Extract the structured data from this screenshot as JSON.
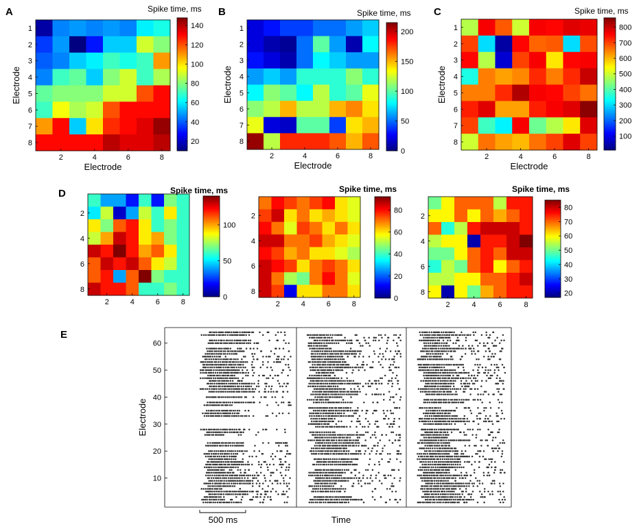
{
  "panel_labels": [
    "A",
    "B",
    "C",
    "D",
    "E"
  ],
  "chart_data": [
    {
      "id": "A",
      "type": "heatmap",
      "colorbar_label": "Spike time, ms",
      "xlabel": "Electrode",
      "ylabel": "Electrode",
      "xticks": [
        "2",
        "4",
        "6",
        "8"
      ],
      "yticks": [
        "1",
        "2",
        "3",
        "4",
        "5",
        "6",
        "7",
        "8"
      ],
      "cbar_range": [
        10,
        148
      ],
      "cbar_ticks": [
        "20",
        "40",
        "60",
        "80",
        "100",
        "120",
        "140"
      ],
      "matrix": [
        [
          15,
          45,
          48,
          45,
          48,
          45,
          60,
          65
        ],
        [
          35,
          48,
          10,
          30,
          55,
          55,
          90,
          80
        ],
        [
          40,
          45,
          55,
          60,
          70,
          65,
          70,
          110
        ],
        [
          45,
          70,
          75,
          55,
          80,
          90,
          70,
          85
        ],
        [
          75,
          80,
          80,
          80,
          90,
          90,
          120,
          130
        ],
        [
          70,
          95,
          85,
          90,
          120,
          130,
          130,
          130
        ],
        [
          110,
          130,
          55,
          100,
          125,
          130,
          135,
          145
        ],
        [
          130,
          130,
          130,
          130,
          140,
          135,
          135,
          140
        ]
      ]
    },
    {
      "id": "B",
      "type": "heatmap",
      "colorbar_label": "Spike time, ms",
      "xlabel": "Electrode",
      "ylabel": "Electrode",
      "xticks": [
        "2",
        "4",
        "6",
        "8"
      ],
      "yticks": [
        "1",
        "2",
        "3",
        "4",
        "5",
        "6",
        "7",
        "8"
      ],
      "cbar_range": [
        0,
        215
      ],
      "cbar_ticks": [
        "0",
        "50",
        "100",
        "150",
        "200"
      ],
      "matrix": [
        [
          20,
          30,
          40,
          40,
          50,
          50,
          60,
          70
        ],
        [
          20,
          10,
          5,
          50,
          100,
          60,
          10,
          80
        ],
        [
          30,
          20,
          10,
          50,
          80,
          70,
          60,
          60
        ],
        [
          60,
          70,
          60,
          90,
          90,
          90,
          110,
          90
        ],
        [
          80,
          110,
          100,
          80,
          120,
          90,
          100,
          130
        ],
        [
          110,
          120,
          150,
          120,
          120,
          150,
          160,
          140
        ],
        [
          130,
          20,
          15,
          100,
          100,
          40,
          140,
          150
        ],
        [
          210,
          120,
          180,
          180,
          180,
          170,
          150,
          170
        ]
      ]
    },
    {
      "id": "C",
      "type": "heatmap",
      "colorbar_label": "Spike time, ms",
      "xlabel": "Electrode",
      "ylabel": "Electrode",
      "xticks": [
        "2",
        "4",
        "6",
        "8"
      ],
      "yticks": [
        "1",
        "2",
        "3",
        "4",
        "5",
        "6",
        "7",
        "8"
      ],
      "cbar_range": [
        10,
        860
      ],
      "cbar_ticks": [
        "100",
        "200",
        "300",
        "400",
        "500",
        "600",
        "700",
        "800"
      ],
      "matrix": [
        [
          480,
          760,
          680,
          500,
          760,
          750,
          780,
          770
        ],
        [
          700,
          300,
          40,
          750,
          670,
          680,
          300,
          690
        ],
        [
          750,
          480,
          80,
          700,
          760,
          560,
          750,
          760
        ],
        [
          350,
          650,
          620,
          640,
          720,
          650,
          720,
          800
        ],
        [
          650,
          650,
          720,
          820,
          760,
          750,
          700,
          660
        ],
        [
          730,
          780,
          620,
          620,
          730,
          760,
          780,
          850
        ],
        [
          700,
          380,
          320,
          760,
          420,
          480,
          560,
          780
        ],
        [
          500,
          660,
          620,
          600,
          660,
          700,
          780,
          700
        ]
      ]
    },
    {
      "id": "D1",
      "type": "heatmap",
      "colorbar_label": "Spike time, ms",
      "xticks": [
        "2",
        "4",
        "6",
        "8"
      ],
      "yticks": [
        "2",
        "4",
        "6",
        "8"
      ],
      "cbar_range": [
        0,
        140
      ],
      "cbar_ticks": [
        "0",
        "50",
        "100"
      ],
      "matrix": [
        [
          60,
          40,
          40,
          20,
          60,
          20,
          70,
          60
        ],
        [
          50,
          80,
          10,
          40,
          80,
          60,
          90,
          60
        ],
        [
          90,
          70,
          110,
          120,
          90,
          60,
          70,
          60
        ],
        [
          80,
          100,
          130,
          120,
          90,
          100,
          70,
          60
        ],
        [
          130,
          120,
          140,
          120,
          100,
          110,
          90,
          60
        ],
        [
          110,
          130,
          120,
          130,
          110,
          90,
          80,
          60
        ],
        [
          110,
          120,
          40,
          110,
          140,
          70,
          60,
          60
        ],
        [
          130,
          120,
          120,
          110,
          60,
          60,
          70,
          60
        ]
      ]
    },
    {
      "id": "D2",
      "type": "heatmap",
      "colorbar_label": "Spike time, ms",
      "xticks": [
        "2",
        "4",
        "6",
        "8"
      ],
      "yticks": [
        "2",
        "4",
        "6",
        "8"
      ],
      "cbar_range": [
        0,
        92
      ],
      "cbar_ticks": [
        "0",
        "20",
        "40",
        "60",
        "80"
      ],
      "matrix": [
        [
          70,
          80,
          75,
          70,
          75,
          80,
          60,
          55
        ],
        [
          75,
          85,
          60,
          70,
          60,
          65,
          60,
          55
        ],
        [
          80,
          70,
          55,
          75,
          70,
          60,
          70,
          60
        ],
        [
          85,
          85,
          70,
          70,
          75,
          65,
          60,
          55
        ],
        [
          80,
          75,
          65,
          70,
          60,
          60,
          55,
          50
        ],
        [
          85,
          80,
          75,
          60,
          70,
          75,
          70,
          60
        ],
        [
          85,
          70,
          50,
          45,
          70,
          80,
          70,
          55
        ],
        [
          85,
          75,
          10,
          60,
          60,
          70,
          70,
          60
        ]
      ]
    },
    {
      "id": "D3",
      "type": "heatmap",
      "colorbar_label": "Spike time, ms",
      "xticks": [
        "2",
        "4",
        "6",
        "8"
      ],
      "yticks": [
        "2",
        "4",
        "6",
        "8"
      ],
      "cbar_range": [
        17,
        85
      ],
      "cbar_ticks": [
        "20",
        "30",
        "40",
        "50",
        "60",
        "70",
        "80"
      ],
      "matrix": [
        [
          50,
          60,
          70,
          70,
          70,
          55,
          75,
          75
        ],
        [
          60,
          60,
          70,
          60,
          70,
          65,
          70,
          75
        ],
        [
          70,
          45,
          55,
          75,
          80,
          80,
          80,
          75
        ],
        [
          55,
          60,
          60,
          20,
          75,
          75,
          80,
          85
        ],
        [
          50,
          50,
          60,
          70,
          75,
          70,
          80,
          80
        ],
        [
          45,
          55,
          50,
          70,
          75,
          60,
          70,
          75
        ],
        [
          55,
          55,
          60,
          60,
          70,
          70,
          75,
          80
        ],
        [
          60,
          20,
          60,
          50,
          65,
          70,
          75,
          75
        ]
      ]
    },
    {
      "id": "E",
      "type": "scatter",
      "subtype": "raster",
      "ylabel": "Electrode",
      "xlabel": "Time",
      "yticks": [
        "10",
        "20",
        "30",
        "40",
        "50",
        "60"
      ],
      "ylim": [
        0,
        65
      ],
      "scalebar_label": "500 ms",
      "panels": 3
    }
  ]
}
